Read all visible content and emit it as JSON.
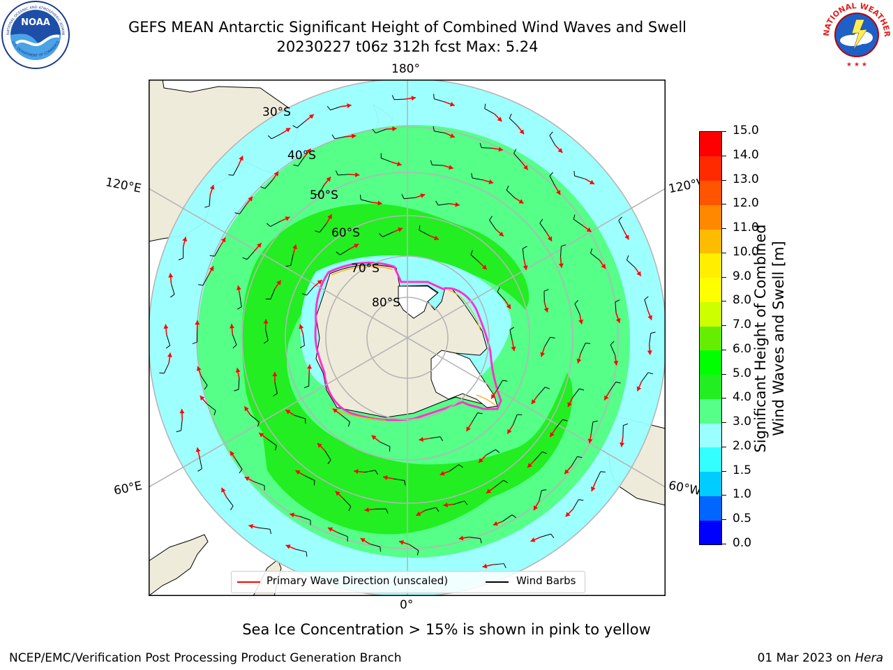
{
  "title": {
    "line1": "GEFS MEAN Antarctic Significant Height of Combined Wind Waves and Swell",
    "line2": "20230227 t06z 312h fcst   Max: 5.24"
  },
  "logos": {
    "left": "NOAA",
    "left_ring_text": "NATIONAL OCEANIC AND ATMOSPHERIC ADMINISTRATION",
    "left_bottom_text": "U.S. DEPARTMENT OF COMMERCE",
    "right_ring_text": "NATIONAL WEATHER SERVICE"
  },
  "map": {
    "projection": "south-polar-stereographic",
    "longitude_labels": {
      "top": "180°",
      "bottom": "0°",
      "upper_left": "120°E",
      "upper_right": "120°W",
      "lower_left": "60°E",
      "lower_right": "60°W"
    },
    "latitude_labels": [
      "30°S",
      "40°S",
      "50°S",
      "60°S",
      "70°S",
      "80°S"
    ],
    "colors": {
      "land": "#efebdb",
      "coast": "#000000",
      "grid": "#b5b5b5",
      "ice": "#ff33cc",
      "ice_inner": "#ffaa00",
      "arrow": "#ff0000",
      "barb": "#000000"
    }
  },
  "legend": {
    "primary_wave": "Primary Wave Direction (unscaled)",
    "wind_barbs": "Wind Barbs"
  },
  "colorbar": {
    "label_line1": "Significant Height of Combined",
    "label_line2": "Wind Waves and Swell [m]",
    "ticks": [
      "0.0",
      "0.5",
      "1.0",
      "1.5",
      "2.0",
      "3.0",
      "4.0",
      "5.0",
      "6.0",
      "7.0",
      "8.0",
      "9.0",
      "10.0",
      "11.0",
      "12.0",
      "13.0",
      "14.0",
      "15.0"
    ],
    "colors": [
      "#0000ff",
      "#0066ff",
      "#00ccff",
      "#33ffff",
      "#99ffff",
      "#55ff88",
      "#22ee22",
      "#00ff00",
      "#66ee00",
      "#ccff00",
      "#ffff00",
      "#ffee00",
      "#ffbb00",
      "#ff8800",
      "#ff5500",
      "#ff2a00",
      "#ff0000"
    ]
  },
  "footnote": "Sea Ice Concentration > 15% is shown in pink to yellow",
  "credit_left": "NCEP/EMC/Verification Post Processing Product Generation Branch",
  "credit_right_date": "01 Mar 2023 on",
  "credit_right_host": "Hera"
}
